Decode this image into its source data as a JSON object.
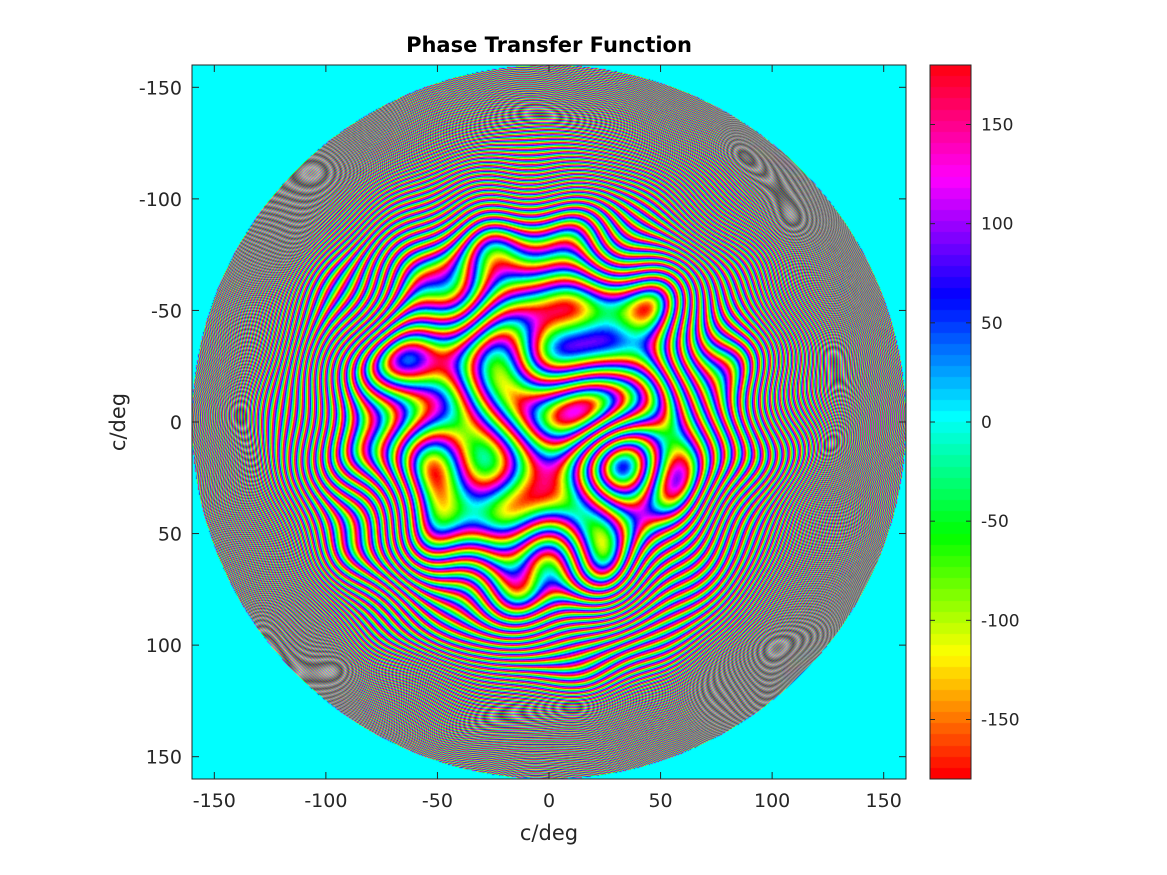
{
  "chart_data": {
    "type": "heatmap",
    "title": "Phase Transfer Function",
    "xlabel": "c/deg",
    "ylabel": "c/deg",
    "xlim": [
      -160,
      160
    ],
    "ylim": [
      -160,
      160
    ],
    "y_axis_reversed": true,
    "x_ticks": [
      -150,
      -100,
      -50,
      0,
      50,
      100,
      150
    ],
    "y_ticks": [
      -150,
      -100,
      -50,
      0,
      50,
      100,
      150
    ],
    "pupil_radius": 160,
    "outside_pupil_value": 0,
    "colorbar": {
      "colormap": "hsv",
      "range": [
        -180,
        180
      ],
      "ticks": [
        150,
        100,
        50,
        0,
        -50,
        -100,
        -150
      ],
      "location": "right"
    },
    "grid": false
  },
  "colors": {
    "axis": "#262626",
    "title": "#000000",
    "background": "#ffffff",
    "zero_phase": "#00ffff"
  }
}
